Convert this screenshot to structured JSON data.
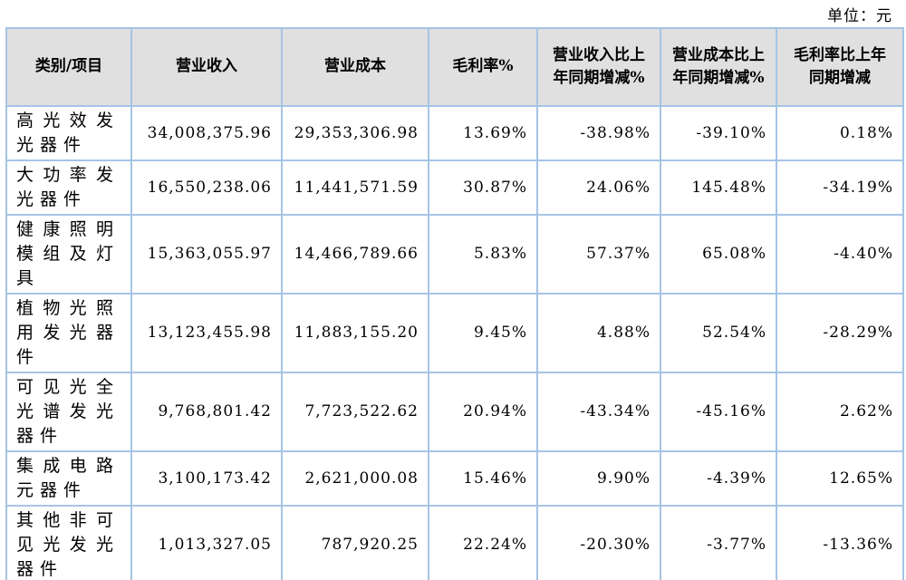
{
  "unit_label": "单位：元",
  "colors": {
    "border": "#a5c4e4",
    "header_bg": "#e0e0e0",
    "partial_row_bg": "#e4e4e4",
    "text": "#000000",
    "page_bg": "#ffffff"
  },
  "table": {
    "headers": {
      "category": "类别/项目",
      "revenue": "营业收入",
      "cost": "营业成本",
      "gross_margin": "毛利率%",
      "revenue_yoy": "营业收入比上年同期增减%",
      "cost_yoy": "营业成本比上年同期增减%",
      "margin_yoy": "毛利率比上年同期增减"
    },
    "rows": [
      {
        "category": "高光效发光器件",
        "revenue": "34,008,375.96",
        "cost": "29,353,306.98",
        "gross_margin": "13.69%",
        "revenue_yoy": "-38.98%",
        "cost_yoy": "-39.10%",
        "margin_yoy": "0.18%"
      },
      {
        "category": "大功率发光器件",
        "revenue": "16,550,238.06",
        "cost": "11,441,571.59",
        "gross_margin": "30.87%",
        "revenue_yoy": "24.06%",
        "cost_yoy": "145.48%",
        "margin_yoy": "-34.19%"
      },
      {
        "category": "健康照明模组及灯具",
        "revenue": "15,363,055.97",
        "cost": "14,466,789.66",
        "gross_margin": "5.83%",
        "revenue_yoy": "57.37%",
        "cost_yoy": "65.08%",
        "margin_yoy": "-4.40%"
      },
      {
        "category": "植物光照用发光器件",
        "revenue": "13,123,455.98",
        "cost": "11,883,155.20",
        "gross_margin": "9.45%",
        "revenue_yoy": "4.88%",
        "cost_yoy": "52.54%",
        "margin_yoy": "-28.29%"
      },
      {
        "category": "可见光全光谱发光器件",
        "revenue": "9,768,801.42",
        "cost": "7,723,522.62",
        "gross_margin": "20.94%",
        "revenue_yoy": "-43.34%",
        "cost_yoy": "-45.16%",
        "margin_yoy": "2.62%"
      },
      {
        "category": "集成电路元器件",
        "revenue": "3,100,173.42",
        "cost": "2,621,000.08",
        "gross_margin": "15.46%",
        "revenue_yoy": "9.90%",
        "cost_yoy": "-4.39%",
        "margin_yoy": "12.65%"
      },
      {
        "category": "其他非可见光发光器件",
        "revenue": "1,013,327.05",
        "cost": "787,920.25",
        "gross_margin": "22.24%",
        "revenue_yoy": "-20.30%",
        "cost_yoy": "-3.77%",
        "margin_yoy": "-13.36%"
      }
    ]
  }
}
